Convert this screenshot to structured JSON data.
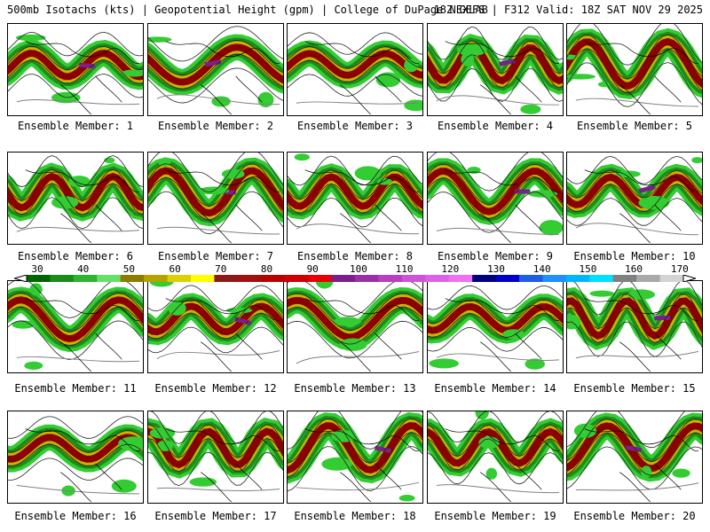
{
  "header": {
    "title": "500mb Isotachs (kts) | Geopotential Height (gpm) | College of DuPage NEXLAB",
    "run_info": "18Z GEFS | F312 Valid: 18Z SAT NOV 29 2025"
  },
  "legend": {
    "labels": [
      "30",
      "40",
      "50",
      "60",
      "70",
      "80",
      "90",
      "100",
      "110",
      "120",
      "130",
      "140",
      "150",
      "160",
      "170"
    ],
    "colors": [
      "#006400",
      "#1a8c1a",
      "#2db52d",
      "#66e066",
      "#8b7d00",
      "#b5a300",
      "#dcd000",
      "#ffff00",
      "#8b1a1a",
      "#a01010",
      "#b80000",
      "#d00000",
      "#e80000",
      "#7a1f8b",
      "#9a30a8",
      "#b840c0",
      "#d050d8",
      "#e060e8",
      "#f070f0",
      "#000080",
      "#0000cd",
      "#1e5ee6",
      "#1e90ff",
      "#00b4ff",
      "#00e0ff",
      "#808080",
      "#a9a9a9",
      "#d3d3d3"
    ]
  },
  "panels": [
    {
      "caption": "Ensemble Member: 1"
    },
    {
      "caption": "Ensemble Member: 2"
    },
    {
      "caption": "Ensemble Member: 3"
    },
    {
      "caption": "Ensemble Member: 4"
    },
    {
      "caption": "Ensemble Member: 5"
    },
    {
      "caption": "Ensemble Member: 6"
    },
    {
      "caption": "Ensemble Member: 7"
    },
    {
      "caption": "Ensemble Member: 8"
    },
    {
      "caption": "Ensemble Member: 9"
    },
    {
      "caption": "Ensemble Member: 10"
    },
    {
      "caption": "Ensemble Member: 11"
    },
    {
      "caption": "Ensemble Member: 12"
    },
    {
      "caption": "Ensemble Member: 13"
    },
    {
      "caption": "Ensemble Member: 14"
    },
    {
      "caption": "Ensemble Member: 15"
    },
    {
      "caption": "Ensemble Member: 16"
    },
    {
      "caption": "Ensemble Member: 17"
    },
    {
      "caption": "Ensemble Member: 18"
    },
    {
      "caption": "Ensemble Member: 19"
    },
    {
      "caption": "Ensemble Member: 20"
    }
  ],
  "colors": {
    "green_light": "#33cc33",
    "green_dark": "#1a8c1a",
    "yellow": "#c8b400",
    "red": "#8b0000",
    "purple": "#7a1f8b",
    "contour": "#808080"
  }
}
